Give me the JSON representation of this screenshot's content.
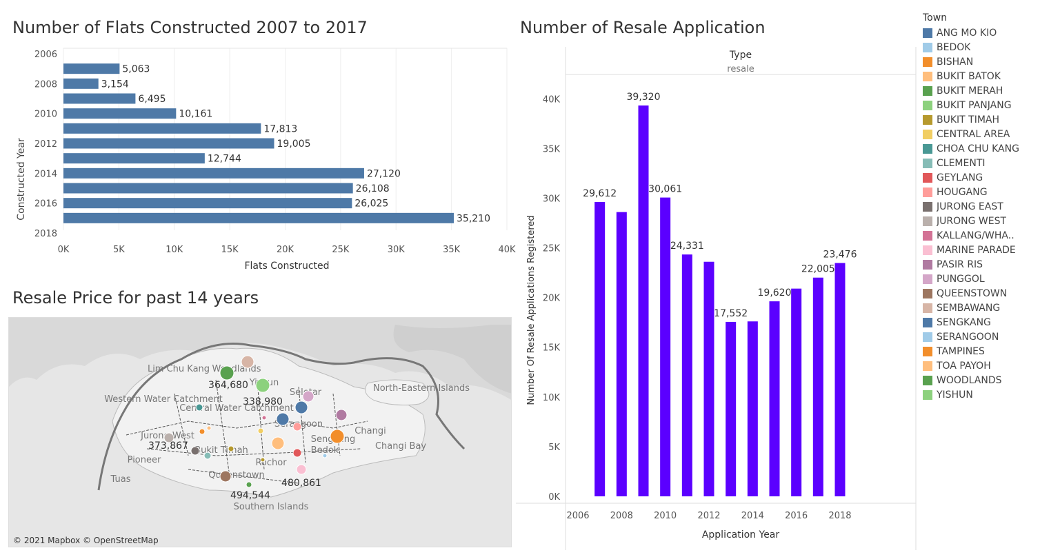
{
  "charts": {
    "flats": {
      "title": "Number of Flats Constructed 2007 to 2017",
      "xlabel": "Flats Constructed",
      "ylabel": "Constructed Year",
      "xticks": [
        "0K",
        "5K",
        "10K",
        "15K",
        "20K",
        "25K",
        "30K",
        "35K",
        "40K"
      ],
      "yticks": [
        "2006",
        "2008",
        "2010",
        "2012",
        "2014",
        "2016",
        "2018"
      ]
    },
    "resale": {
      "title": "Number of Resale Application",
      "header": "Type",
      "subheader": "resale",
      "xlabel": "Application Year",
      "ylabel": "Number Of Resale Applications Registered",
      "yticks": [
        "0K",
        "5K",
        "10K",
        "15K",
        "20K",
        "25K",
        "30K",
        "35K",
        "40K"
      ],
      "xticks": [
        "2006",
        "2008",
        "2010",
        "2012",
        "2014",
        "2016",
        "2018"
      ]
    },
    "map": {
      "title": "Resale Price for past 14 years",
      "attribution": "© 2021 Mapbox © OpenStreetMap",
      "place_labels": [
        "Lim Chu Kang",
        "Woodlands",
        "Yishun",
        "Western Water Catchment",
        "Central Water Catchment",
        "Seletar",
        "Serangoon",
        "Sengkang",
        "Jurong West",
        "Bukit Timah",
        "Pioneer",
        "Tuas",
        "Queenstown",
        "Rochor",
        "Bedok",
        "Changi",
        "Changi Bay",
        "North-Eastern Islands",
        "Southern Islands"
      ],
      "value_labels": [
        "364,680",
        "338,980",
        "373,867",
        "480,861",
        "494,544"
      ]
    }
  },
  "legend": {
    "title": "Town",
    "items": [
      {
        "label": "ANG MO KIO",
        "color": "#4e79a7"
      },
      {
        "label": "BEDOK",
        "color": "#a0cbe8"
      },
      {
        "label": "BISHAN",
        "color": "#f28e2b"
      },
      {
        "label": "BUKIT BATOK",
        "color": "#ffbe7d"
      },
      {
        "label": "BUKIT MERAH",
        "color": "#59a14f"
      },
      {
        "label": "BUKIT PANJANG",
        "color": "#8cd17d"
      },
      {
        "label": "BUKIT TIMAH",
        "color": "#b6992d"
      },
      {
        "label": "CENTRAL AREA",
        "color": "#f1ce63"
      },
      {
        "label": "CHOA CHU KANG",
        "color": "#499894"
      },
      {
        "label": "CLEMENTI",
        "color": "#86bcb6"
      },
      {
        "label": "GEYLANG",
        "color": "#e15759"
      },
      {
        "label": "HOUGANG",
        "color": "#ff9d9a"
      },
      {
        "label": "JURONG EAST",
        "color": "#79706e"
      },
      {
        "label": "JURONG WEST",
        "color": "#bab0ac"
      },
      {
        "label": "KALLANG/WHA..",
        "color": "#d37295"
      },
      {
        "label": "MARINE PARADE",
        "color": "#fabfd2"
      },
      {
        "label": "PASIR RIS",
        "color": "#b07aa1"
      },
      {
        "label": "PUNGGOL",
        "color": "#d4a6c8"
      },
      {
        "label": "QUEENSTOWN",
        "color": "#9d7660"
      },
      {
        "label": "SEMBAWANG",
        "color": "#d7b5a6"
      },
      {
        "label": "SENGKANG",
        "color": "#4e79a7"
      },
      {
        "label": "SERANGOON",
        "color": "#a0cbe8"
      },
      {
        "label": "TAMPINES",
        "color": "#f28e2b"
      },
      {
        "label": "TOA PAYOH",
        "color": "#ffbe7d"
      },
      {
        "label": "WOODLANDS",
        "color": "#59a14f"
      },
      {
        "label": "YISHUN",
        "color": "#8cd17d"
      }
    ]
  },
  "chart_data": [
    {
      "type": "bar",
      "orientation": "horizontal",
      "title": "Number of Flats Constructed 2007 to 2017",
      "xlabel": "Flats Constructed",
      "ylabel": "Constructed Year",
      "xlim": [
        0,
        40000
      ],
      "ylim": [
        2006,
        2018
      ],
      "color": "#4e79a7",
      "categories": [
        2007,
        2008,
        2009,
        2010,
        2011,
        2012,
        2013,
        2014,
        2015,
        2016,
        2017
      ],
      "values": [
        5063,
        3154,
        6495,
        10161,
        17813,
        19005,
        12744,
        27120,
        26108,
        26025,
        35210
      ],
      "labels": [
        "5,063",
        "3,154",
        "6,495",
        "10,161",
        "17,813",
        "19,005",
        "12,744",
        "27,120",
        "26,108",
        "26,025",
        "35,210"
      ],
      "grid": true
    },
    {
      "type": "bar",
      "title": "Number of Resale Application",
      "xlabel": "Application Year",
      "ylabel": "Number Of Resale Applications Registered",
      "ylim": [
        0,
        43000
      ],
      "xlim": [
        2006,
        2018
      ],
      "color": "#5b00ff",
      "categories": [
        2007,
        2008,
        2009,
        2010,
        2011,
        2012,
        2013,
        2014,
        2015,
        2016,
        2017,
        2018
      ],
      "values": [
        29612,
        28600,
        39320,
        30061,
        24331,
        23600,
        17552,
        17600,
        19620,
        20900,
        22005,
        23476
      ],
      "labels": [
        "29,612",
        "",
        "39,320",
        "30,061",
        "24,331",
        "",
        "17,552",
        "",
        "19,620",
        "",
        "22,005",
        "23,476"
      ],
      "grid": false
    }
  ]
}
